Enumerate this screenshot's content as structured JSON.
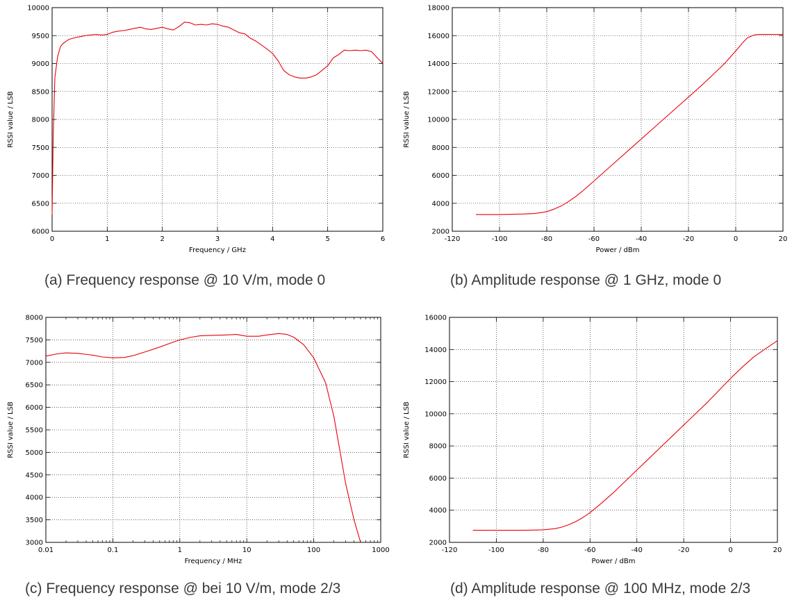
{
  "chart_data": [
    {
      "type": "line",
      "caption": "(a)  Frequency response @ 10 V/m, mode 0",
      "xlabel": "Frequency / GHz",
      "ylabel": "RSSI value / LSB",
      "xlim": [
        0,
        6
      ],
      "ylim": [
        6000,
        10000
      ],
      "x_scale": "linear",
      "x_ticks": [
        0,
        1,
        2,
        3,
        4,
        5,
        6
      ],
      "y_ticks": [
        6000,
        6500,
        7000,
        7500,
        8000,
        8500,
        9000,
        9500,
        10000
      ],
      "grid": true,
      "series": [
        {
          "color": "#e8000b",
          "x": [
            0.0,
            0.02,
            0.05,
            0.1,
            0.15,
            0.2,
            0.3,
            0.4,
            0.5,
            0.6,
            0.7,
            0.8,
            0.9,
            1.0,
            1.1,
            1.2,
            1.3,
            1.4,
            1.5,
            1.6,
            1.7,
            1.8,
            1.9,
            2.0,
            2.1,
            2.2,
            2.3,
            2.4,
            2.5,
            2.6,
            2.7,
            2.8,
            2.9,
            3.0,
            3.1,
            3.2,
            3.3,
            3.4,
            3.5,
            3.6,
            3.7,
            3.8,
            3.9,
            4.0,
            4.1,
            4.2,
            4.3,
            4.4,
            4.5,
            4.6,
            4.7,
            4.8,
            4.9,
            5.0,
            5.1,
            5.2,
            5.3,
            5.4,
            5.5,
            5.6,
            5.7,
            5.8,
            5.9,
            6.0
          ],
          "y": [
            6300,
            7700,
            8750,
            9120,
            9300,
            9360,
            9430,
            9460,
            9480,
            9500,
            9510,
            9520,
            9510,
            9520,
            9560,
            9580,
            9590,
            9610,
            9630,
            9650,
            9620,
            9610,
            9630,
            9650,
            9620,
            9600,
            9660,
            9740,
            9730,
            9690,
            9700,
            9690,
            9710,
            9700,
            9670,
            9650,
            9600,
            9550,
            9530,
            9450,
            9400,
            9330,
            9260,
            9180,
            9050,
            8880,
            8800,
            8760,
            8740,
            8740,
            8760,
            8800,
            8880,
            8960,
            9100,
            9160,
            9240,
            9230,
            9240,
            9230,
            9240,
            9210,
            9100,
            9000
          ]
        }
      ]
    },
    {
      "type": "line",
      "caption": "(b)  Amplitude response @ 1 GHz, mode 0",
      "xlabel": "Power / dBm",
      "ylabel": "RSSI value / LSB",
      "xlim": [
        -120,
        20
      ],
      "ylim": [
        2000,
        18000
      ],
      "x_scale": "linear",
      "x_ticks": [
        -120,
        -100,
        -80,
        -60,
        -40,
        -20,
        0,
        20
      ],
      "y_ticks": [
        2000,
        4000,
        6000,
        8000,
        10000,
        12000,
        14000,
        16000,
        18000
      ],
      "grid": true,
      "series": [
        {
          "color": "#e8000b",
          "x": [
            -110,
            -100,
            -95,
            -90,
            -85,
            -80,
            -77,
            -74,
            -71,
            -68,
            -65,
            -60,
            -55,
            -50,
            -45,
            -40,
            -35,
            -30,
            -25,
            -20,
            -15,
            -10,
            -5,
            0,
            3,
            5,
            8,
            10,
            15,
            20
          ],
          "y": [
            3200,
            3200,
            3210,
            3230,
            3270,
            3400,
            3580,
            3800,
            4100,
            4450,
            4850,
            5600,
            6350,
            7100,
            7850,
            8600,
            9350,
            10100,
            10850,
            11600,
            12350,
            13150,
            13950,
            14900,
            15500,
            15850,
            16050,
            16080,
            16080,
            16080
          ]
        }
      ]
    },
    {
      "type": "line",
      "caption": "(c)  Frequency response @ bei 10 V/m, mode 2/3",
      "xlabel": "Frequency / MHz",
      "ylabel": "RSSI value / LSB",
      "xlim": [
        0.01,
        1000
      ],
      "ylim": [
        3000,
        8000
      ],
      "x_scale": "log",
      "x_ticks": [
        0.01,
        0.1,
        1,
        10,
        100,
        1000
      ],
      "x_tick_labels": [
        "0.01",
        "0.1",
        "1",
        "10",
        "100",
        "1000"
      ],
      "y_ticks": [
        3000,
        3500,
        4000,
        4500,
        5000,
        5500,
        6000,
        6500,
        7000,
        7500,
        8000
      ],
      "grid": true,
      "series": [
        {
          "color": "#e8000b",
          "x": [
            0.01,
            0.015,
            0.02,
            0.03,
            0.05,
            0.07,
            0.1,
            0.15,
            0.2,
            0.3,
            0.5,
            0.7,
            1,
            1.5,
            2,
            3,
            5,
            7,
            10,
            15,
            20,
            30,
            40,
            50,
            70,
            100,
            120,
            150,
            200,
            300,
            400,
            500
          ],
          "y": [
            7140,
            7190,
            7210,
            7200,
            7160,
            7120,
            7100,
            7110,
            7150,
            7230,
            7340,
            7420,
            7500,
            7560,
            7590,
            7600,
            7610,
            7620,
            7580,
            7580,
            7610,
            7640,
            7620,
            7560,
            7400,
            7100,
            6850,
            6550,
            5800,
            4300,
            3500,
            3000
          ]
        }
      ]
    },
    {
      "type": "line",
      "caption": "(d)  Amplitude response @ 100 MHz, mode 2/3",
      "xlabel": "Power / dBm",
      "ylabel": "RSSI value / LSB",
      "xlim": [
        -120,
        20
      ],
      "ylim": [
        2000,
        16000
      ],
      "x_scale": "linear",
      "x_ticks": [
        -120,
        -100,
        -80,
        -60,
        -40,
        -20,
        0,
        20
      ],
      "y_ticks": [
        2000,
        4000,
        6000,
        8000,
        10000,
        12000,
        14000,
        16000
      ],
      "grid": true,
      "series": [
        {
          "color": "#e8000b",
          "x": [
            -110,
            -100,
            -90,
            -85,
            -80,
            -75,
            -72,
            -69,
            -66,
            -63,
            -60,
            -55,
            -50,
            -45,
            -40,
            -35,
            -30,
            -25,
            -20,
            -15,
            -10,
            -5,
            0,
            5,
            10,
            15,
            20
          ],
          "y": [
            2750,
            2750,
            2750,
            2760,
            2780,
            2850,
            2950,
            3100,
            3300,
            3550,
            3850,
            4450,
            5100,
            5800,
            6500,
            7200,
            7900,
            8600,
            9300,
            10000,
            10700,
            11450,
            12200,
            12900,
            13550,
            14050,
            14550
          ]
        }
      ]
    }
  ]
}
